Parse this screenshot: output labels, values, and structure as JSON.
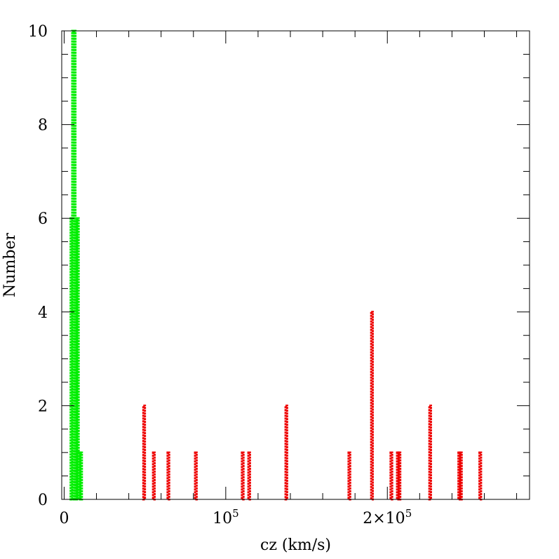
{
  "chart_data": {
    "type": "bar",
    "title": "",
    "xlabel": "cz (km/s)",
    "ylabel": "Number",
    "xlim": [
      -1500,
      288000
    ],
    "ylim": [
      0,
      10
    ],
    "grid": false,
    "bin_width": 1000,
    "x_ticks": [
      {
        "value": 0,
        "label": "0",
        "sup": ""
      },
      {
        "value": 100000,
        "label": "10",
        "sup": "5"
      },
      {
        "value": 200000,
        "label": "2×10",
        "sup": "5"
      }
    ],
    "y_ticks": [
      {
        "value": 0,
        "label": "0"
      },
      {
        "value": 2,
        "label": "2"
      },
      {
        "value": 4,
        "label": "4"
      },
      {
        "value": 6,
        "label": "6"
      },
      {
        "value": 8,
        "label": "8"
      },
      {
        "value": 10,
        "label": "10"
      }
    ],
    "series": [
      {
        "color": "#00ee00",
        "bins": [
          {
            "x": 4500,
            "value": 6
          },
          {
            "x": 5500,
            "value": 10
          },
          {
            "x": 6500,
            "value": 10
          },
          {
            "x": 7500,
            "value": 6
          },
          {
            "x": 8500,
            "value": 6
          },
          {
            "x": 9500,
            "value": 1
          },
          {
            "x": 10500,
            "value": 1
          }
        ]
      },
      {
        "color": "#ee0000",
        "bins": [
          {
            "x": 49500,
            "value": 2
          },
          {
            "x": 55500,
            "value": 1
          },
          {
            "x": 64500,
            "value": 1
          },
          {
            "x": 81500,
            "value": 1
          },
          {
            "x": 110500,
            "value": 1
          },
          {
            "x": 114500,
            "value": 1
          },
          {
            "x": 137500,
            "value": 2
          },
          {
            "x": 176500,
            "value": 1
          },
          {
            "x": 190500,
            "value": 4
          },
          {
            "x": 202500,
            "value": 1
          },
          {
            "x": 206500,
            "value": 1
          },
          {
            "x": 207500,
            "value": 1
          },
          {
            "x": 226500,
            "value": 2
          },
          {
            "x": 244500,
            "value": 1
          },
          {
            "x": 245500,
            "value": 1
          },
          {
            "x": 257500,
            "value": 1
          }
        ]
      }
    ]
  }
}
